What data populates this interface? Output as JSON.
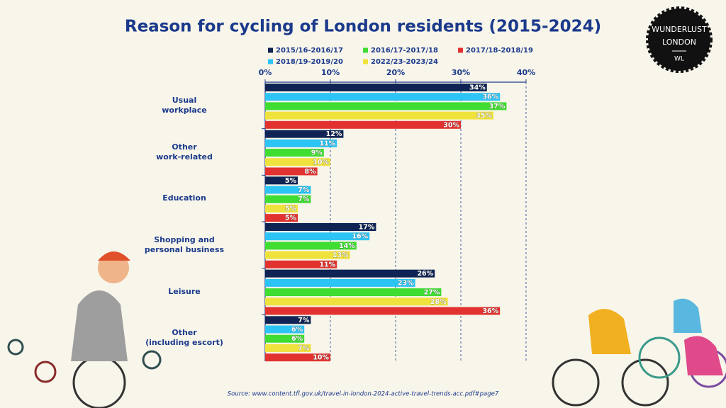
{
  "chart_data": {
    "type": "bar",
    "orientation": "horizontal",
    "title": "Reason for cycling of London residents (2015-2024)",
    "source": "Source: www.content.tfl.gov.uk/travel-in-london-2024-active-travel-trends-acc.pdf#page7",
    "logo": {
      "line1": "WUNDERLUST",
      "line2": "LONDON",
      "mark": "WL"
    },
    "categories": [
      "Usual\nworkplace",
      "Other\nwork-related",
      "Education",
      "Shopping and\npersonal business",
      "Leisure",
      "Other\n(including escort)"
    ],
    "series": [
      {
        "name": "2015/16-2016/17",
        "color": "#0f2454",
        "values": [
          34,
          12,
          5,
          17,
          26,
          7
        ],
        "value_labels": [
          "34%",
          "12%",
          "5%",
          "17%",
          "26%",
          "7%"
        ]
      },
      {
        "name": "2018/19-2019/20",
        "color": "#2cc4f4",
        "values": [
          36,
          11,
          7,
          16,
          23,
          6
        ],
        "value_labels": [
          "36%",
          "11%",
          "7%",
          "16%",
          "23%",
          "6%"
        ]
      },
      {
        "name": "2016/17-2017/18",
        "color": "#3fdc32",
        "values": [
          37,
          9,
          7,
          14,
          27,
          6
        ],
        "value_labels": [
          "37%",
          "9%",
          "7%",
          "14%",
          "27%",
          "6%"
        ]
      },
      {
        "name": "2022/23-2023/24",
        "color": "#f0e23c",
        "values": [
          35,
          10,
          5,
          13,
          28,
          7
        ],
        "value_labels": [
          "35%",
          "10%",
          "5%",
          "13%",
          "28%",
          "7%"
        ]
      },
      {
        "name": "2017/18-2018/19",
        "color": "#e2322f",
        "values": [
          30,
          8,
          5,
          11,
          36,
          10
        ],
        "value_labels": [
          "30%",
          "8%",
          "5%",
          "11%",
          "36%",
          "10%"
        ]
      }
    ],
    "xlim": [
      0,
      40
    ],
    "xticks": [
      {
        "value": 0,
        "label": "0%"
      },
      {
        "value": 10,
        "label": "10%"
      },
      {
        "value": 20,
        "label": "20%"
      },
      {
        "value": 30,
        "label": "30%"
      },
      {
        "value": 40,
        "label": "40%"
      }
    ],
    "grid": true
  }
}
